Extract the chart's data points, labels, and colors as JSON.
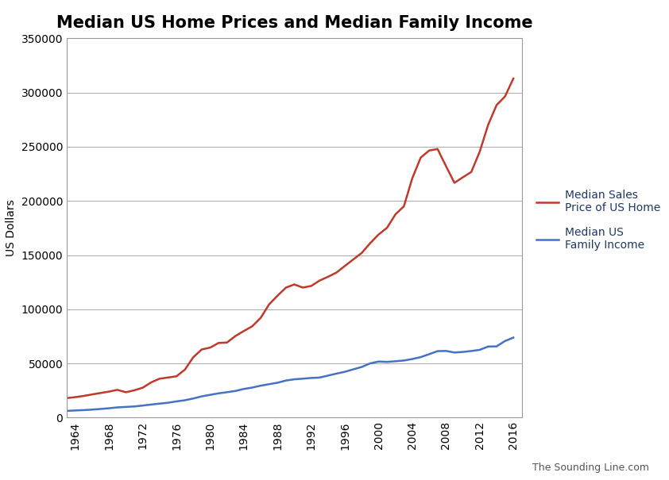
{
  "title": "Median US Home Prices and Median Family Income",
  "ylabel": "US Dollars",
  "watermark": "The Sounding Line.com",
  "ylim": [
    0,
    350000
  ],
  "yticks": [
    0,
    50000,
    100000,
    150000,
    200000,
    250000,
    300000,
    350000
  ],
  "home_prices": {
    "years": [
      1963,
      1964,
      1965,
      1966,
      1967,
      1968,
      1969,
      1970,
      1971,
      1972,
      1973,
      1974,
      1975,
      1976,
      1977,
      1978,
      1979,
      1980,
      1981,
      1982,
      1983,
      1984,
      1985,
      1986,
      1987,
      1988,
      1989,
      1990,
      1991,
      1992,
      1993,
      1994,
      1995,
      1996,
      1997,
      1998,
      1999,
      2000,
      2001,
      2002,
      2003,
      2004,
      2005,
      2006,
      2007,
      2008,
      2009,
      2010,
      2011,
      2012,
      2013,
      2014,
      2015,
      2016
    ],
    "values": [
      18000,
      18900,
      20000,
      21400,
      22700,
      24000,
      25600,
      23400,
      25200,
      27600,
      32500,
      35900,
      37000,
      38100,
      44200,
      55700,
      62900,
      64600,
      68900,
      69300,
      75300,
      79900,
      84300,
      92000,
      104500,
      112500,
      120000,
      122900,
      120000,
      121500,
      126500,
      130000,
      133900,
      140000,
      146000,
      152000,
      161000,
      169000,
      175200,
      187600,
      195000,
      221000,
      240000,
      246500,
      247900,
      232100,
      216700,
      221800,
      226700,
      245400,
      270200,
      288400,
      296400,
      313000
    ],
    "color": "#c0392b",
    "label": "Median Sales\nPrice of US Home"
  },
  "family_income": {
    "years": [
      1963,
      1964,
      1965,
      1966,
      1967,
      1968,
      1969,
      1970,
      1971,
      1972,
      1973,
      1974,
      1975,
      1976,
      1977,
      1978,
      1979,
      1980,
      1981,
      1982,
      1983,
      1984,
      1985,
      1986,
      1987,
      1988,
      1989,
      1990,
      1991,
      1992,
      1993,
      1994,
      1995,
      1996,
      1997,
      1998,
      1999,
      2000,
      2001,
      2002,
      2003,
      2004,
      2005,
      2006,
      2007,
      2008,
      2009,
      2010,
      2011,
      2012,
      2013,
      2014,
      2015,
      2016
    ],
    "values": [
      6200,
      6600,
      6900,
      7400,
      7974,
      8632,
      9433,
      9867,
      10285,
      11116,
      12051,
      12902,
      13719,
      14958,
      16009,
      17640,
      19587,
      21023,
      22388,
      23433,
      24580,
      26433,
      27735,
      29458,
      30853,
      32191,
      34213,
      35353,
      35939,
      36573,
      36959,
      38782,
      40611,
      42300,
      44568,
      46737,
      50046,
      51754,
      51407,
      52005,
      52680,
      54061,
      55832,
      58526,
      61355,
      61521,
      60088,
      60609,
      61455,
      62527,
      65587,
      65719,
      70697,
      73891
    ],
    "color": "#4472c4",
    "label": "Median US\nFamily Income"
  },
  "xticks": [
    1964,
    1968,
    1972,
    1976,
    1980,
    1984,
    1988,
    1992,
    1996,
    2000,
    2004,
    2008,
    2012,
    2016
  ],
  "background_color": "#ffffff",
  "grid_color": "#aaaaaa",
  "title_fontsize": 15,
  "axis_fontsize": 10,
  "tick_fontsize": 10,
  "legend_fontsize": 10,
  "legend_text_color": "#1f3864",
  "watermark_color": "#555555",
  "line_width": 1.8
}
